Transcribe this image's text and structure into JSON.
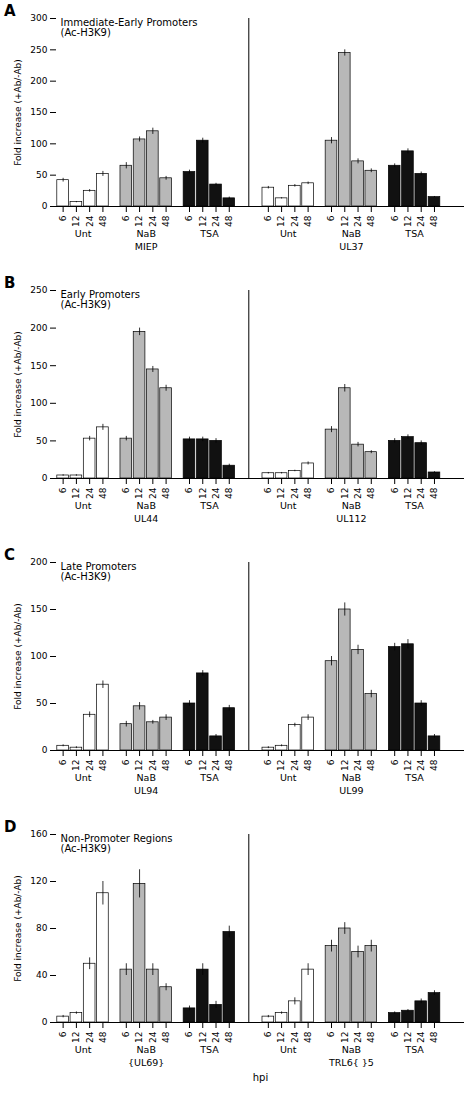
{
  "chart_data": [
    {
      "type": "bar",
      "title": "Immediate-Early Promoters\n(Ac-H3K9)",
      "annotations": [
        "A"
      ],
      "ylabel": "Fold increase (+Ab/-Ab)",
      "ylim": [
        0,
        300
      ],
      "yticks": [
        0,
        50,
        100,
        150,
        200,
        250,
        300
      ],
      "grid": false,
      "edge_color": "black",
      "categories": [
        "6",
        "12",
        "24",
        "48"
      ],
      "series": [
        {
          "gene": "MIEP",
          "name": "Unt",
          "color": "white",
          "values": [
            42,
            7,
            25,
            52
          ],
          "errors": [
            3,
            1,
            2,
            4
          ]
        },
        {
          "gene": "MIEP",
          "name": "NaB",
          "color": "#b8b8b8",
          "values": [
            65,
            107,
            120,
            45
          ],
          "errors": [
            5,
            4,
            5,
            3
          ]
        },
        {
          "gene": "MIEP",
          "name": "TSA",
          "color": "#111111",
          "values": [
            55,
            105,
            35,
            13
          ],
          "errors": [
            3,
            4,
            2,
            2
          ]
        },
        {
          "gene": "UL37",
          "name": "Unt",
          "color": "white",
          "values": [
            30,
            13,
            33,
            37
          ],
          "errors": [
            2,
            1,
            2,
            2
          ]
        },
        {
          "gene": "UL37",
          "name": "NaB",
          "color": "#b8b8b8",
          "values": [
            105,
            245,
            72,
            57
          ],
          "errors": [
            5,
            5,
            4,
            3
          ]
        },
        {
          "gene": "UL37",
          "name": "TSA",
          "color": "#111111",
          "values": [
            65,
            88,
            52,
            15
          ],
          "errors": [
            3,
            4,
            3,
            1
          ]
        }
      ]
    },
    {
      "type": "bar",
      "title": "Early Promoters\n(Ac-H3K9)",
      "annotations": [
        "B"
      ],
      "ylabel": "Fold increase (+Ab/-Ab)",
      "ylim": [
        0,
        250
      ],
      "yticks": [
        0,
        50,
        100,
        150,
        200,
        250
      ],
      "grid": false,
      "edge_color": "black",
      "categories": [
        "6",
        "12",
        "24",
        "48"
      ],
      "series": [
        {
          "gene": "UL44",
          "name": "Unt",
          "color": "white",
          "values": [
            4,
            4,
            53,
            68
          ],
          "errors": [
            1,
            1,
            3,
            4
          ]
        },
        {
          "gene": "UL44",
          "name": "NaB",
          "color": "#b8b8b8",
          "values": [
            53,
            195,
            145,
            120
          ],
          "errors": [
            3,
            5,
            4,
            4
          ]
        },
        {
          "gene": "UL44",
          "name": "TSA",
          "color": "#111111",
          "values": [
            52,
            52,
            50,
            17
          ],
          "errors": [
            3,
            3,
            3,
            2
          ]
        },
        {
          "gene": "UL112",
          "name": "Unt",
          "color": "white",
          "values": [
            7,
            7,
            10,
            20
          ],
          "errors": [
            1,
            1,
            1,
            2
          ]
        },
        {
          "gene": "UL112",
          "name": "NaB",
          "color": "#b8b8b8",
          "values": [
            65,
            120,
            45,
            35
          ],
          "errors": [
            4,
            5,
            3,
            2
          ]
        },
        {
          "gene": "UL112",
          "name": "TSA",
          "color": "#111111",
          "values": [
            50,
            55,
            47,
            8
          ],
          "errors": [
            3,
            3,
            3,
            1
          ]
        }
      ]
    },
    {
      "type": "bar",
      "title": "Late Promoters\n(Ac-H3K9)",
      "annotations": [
        "C"
      ],
      "ylabel": "Fold increase (+Ab/-Ab)",
      "ylim": [
        0,
        200
      ],
      "yticks": [
        0,
        50,
        100,
        150,
        200
      ],
      "grid": false,
      "edge_color": "black",
      "categories": [
        "6",
        "12",
        "24",
        "48"
      ],
      "series": [
        {
          "gene": "UL94",
          "name": "Unt",
          "color": "white",
          "values": [
            5,
            3,
            38,
            70
          ],
          "errors": [
            1,
            1,
            3,
            4
          ]
        },
        {
          "gene": "UL94",
          "name": "NaB",
          "color": "#b8b8b8",
          "values": [
            28,
            47,
            30,
            35
          ],
          "errors": [
            3,
            4,
            2,
            3
          ]
        },
        {
          "gene": "UL94",
          "name": "TSA",
          "color": "#111111",
          "values": [
            50,
            82,
            15,
            45
          ],
          "errors": [
            3,
            3,
            2,
            3
          ]
        },
        {
          "gene": "UL99",
          "name": "Unt",
          "color": "white",
          "values": [
            3,
            5,
            27,
            35
          ],
          "errors": [
            1,
            1,
            2,
            3
          ]
        },
        {
          "gene": "UL99",
          "name": "NaB",
          "color": "#b8b8b8",
          "values": [
            95,
            150,
            107,
            60
          ],
          "errors": [
            5,
            7,
            5,
            4
          ]
        },
        {
          "gene": "UL99",
          "name": "TSA",
          "color": "#111111",
          "values": [
            110,
            113,
            50,
            15
          ],
          "errors": [
            4,
            5,
            3,
            2
          ]
        }
      ]
    },
    {
      "type": "bar",
      "title": "Non-Promoter Regions\n(Ac-H3K9)",
      "annotations": [
        "D"
      ],
      "ylabel": "Fold increase (+Ab/-Ab)",
      "xlabel": "hpi",
      "ylim": [
        0,
        160
      ],
      "yticks": [
        0,
        40,
        80,
        120,
        160
      ],
      "grid": false,
      "edge_color": "black",
      "categories": [
        "6",
        "12",
        "24",
        "48"
      ],
      "series": [
        {
          "gene": "{UL69}",
          "name": "Unt",
          "color": "white",
          "values": [
            5,
            8,
            50,
            110
          ],
          "errors": [
            1,
            1,
            5,
            10
          ]
        },
        {
          "gene": "{UL69}",
          "name": "NaB",
          "color": "#b8b8b8",
          "values": [
            45,
            118,
            45,
            30
          ],
          "errors": [
            5,
            12,
            5,
            3
          ]
        },
        {
          "gene": "{UL69}",
          "name": "TSA",
          "color": "#111111",
          "values": [
            12,
            45,
            15,
            77
          ],
          "errors": [
            2,
            5,
            3,
            5
          ]
        },
        {
          "gene": "TRL6{ }5",
          "name": "Unt",
          "color": "white",
          "values": [
            5,
            8,
            18,
            45
          ],
          "errors": [
            1,
            1,
            3,
            5
          ]
        },
        {
          "gene": "TRL6{ }5",
          "name": "NaB",
          "color": "#b8b8b8",
          "values": [
            65,
            80,
            60,
            65
          ],
          "errors": [
            5,
            5,
            5,
            5
          ]
        },
        {
          "gene": "TRL6{ }5",
          "name": "TSA",
          "color": "#111111",
          "values": [
            8,
            10,
            18,
            25
          ],
          "errors": [
            1,
            1,
            2,
            2
          ]
        }
      ]
    }
  ]
}
